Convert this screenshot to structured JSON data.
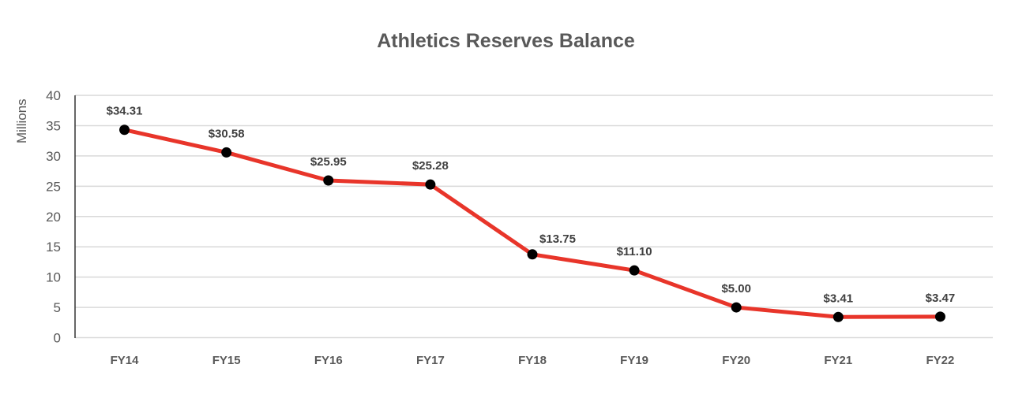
{
  "chart_data": {
    "type": "line",
    "title": "Athletics Reserves Balance",
    "xlabel": "",
    "ylabel": "Millions",
    "ylim": [
      0,
      40
    ],
    "yticks": [
      0,
      5,
      10,
      15,
      20,
      25,
      30,
      35,
      40
    ],
    "grid": true,
    "legend": null,
    "categories": [
      "FY14",
      "FY15",
      "FY16",
      "FY17",
      "FY18",
      "FY19",
      "FY20",
      "FY21",
      "FY22"
    ],
    "series": [
      {
        "name": "Athletics Reserves Balance",
        "color": "#E8352A",
        "marker_color": "#000000",
        "values": [
          34.31,
          30.58,
          25.95,
          25.28,
          13.75,
          11.1,
          5.0,
          3.41,
          3.47
        ],
        "data_labels": [
          "$34.31",
          "$30.58",
          "$25.95",
          "$25.28",
          "$13.75",
          "$11.10",
          "$5.00",
          "$3.41",
          "$3.47"
        ]
      }
    ]
  }
}
